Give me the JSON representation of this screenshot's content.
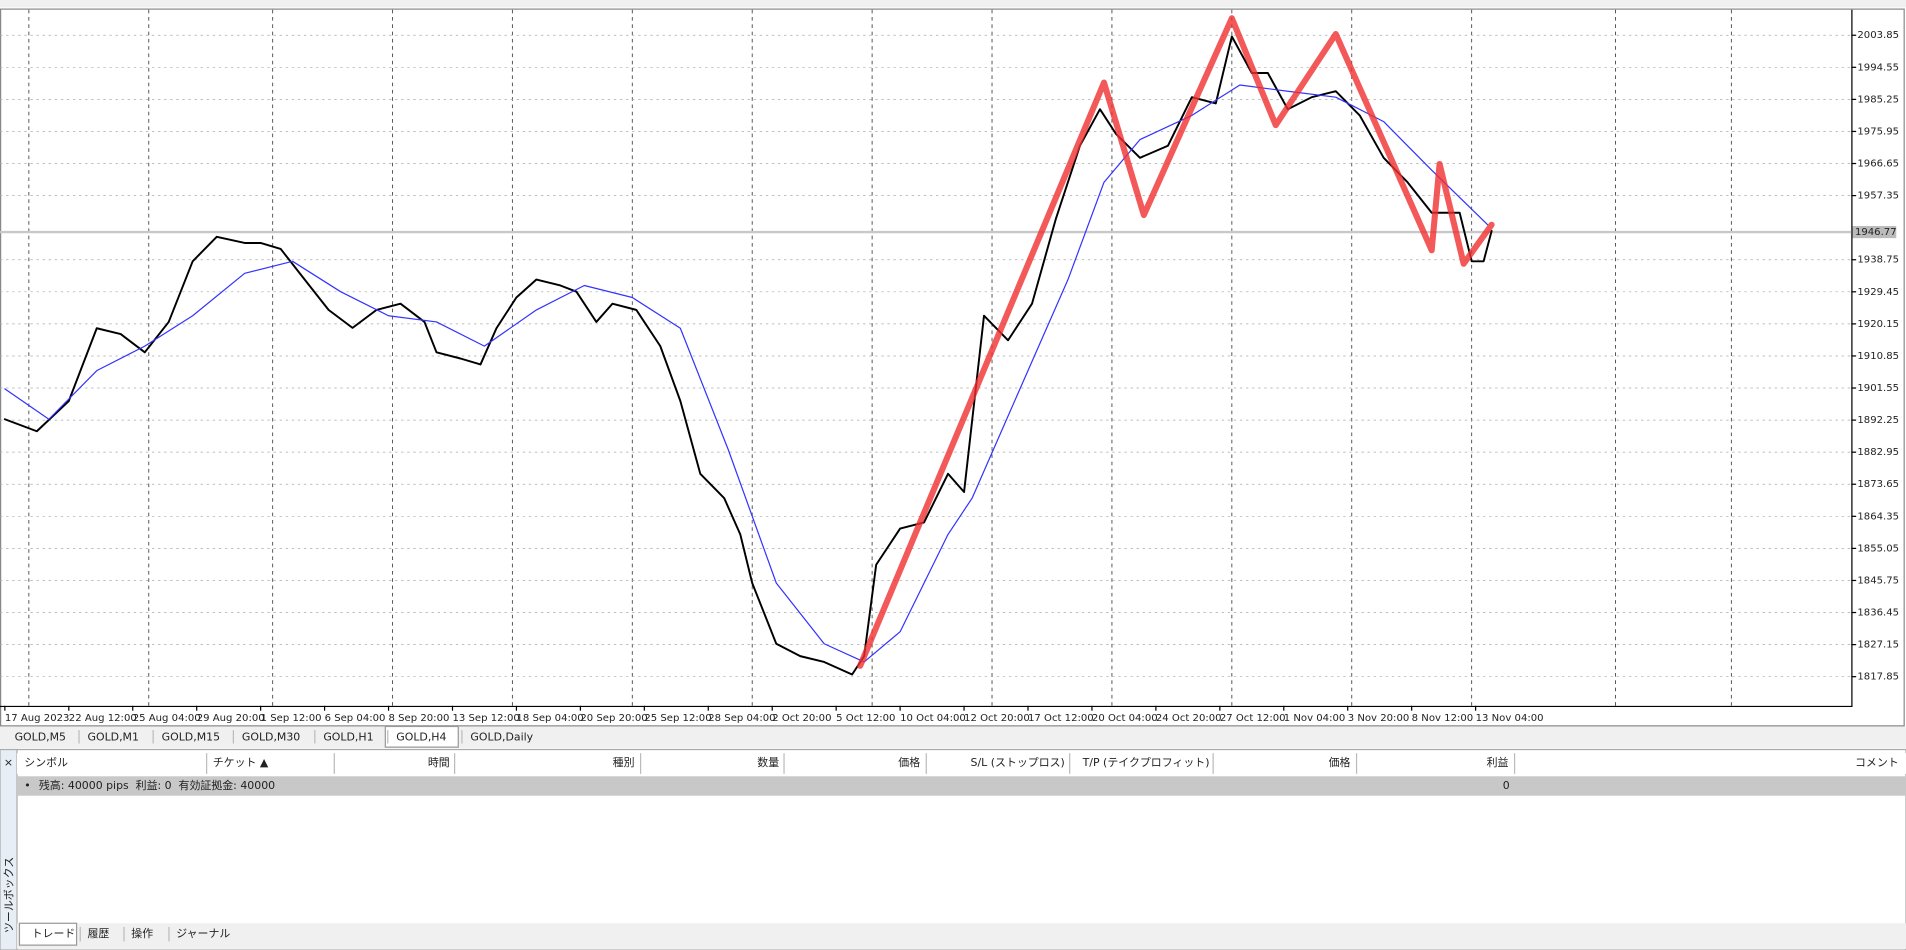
{
  "chart_data": {
    "type": "line",
    "xlim": [
      0,
      462
    ],
    "ylim": [
      1809.4,
      2011.25
    ],
    "yticks": [
      2003.85,
      1994.55,
      1985.25,
      1975.95,
      1966.65,
      1957.35,
      1938.75,
      1929.45,
      1920.15,
      1910.85,
      1901.55,
      1892.25,
      1882.95,
      1873.65,
      1864.35,
      1855.05,
      1845.75,
      1836.45,
      1827.15,
      1817.85
    ],
    "xticks": [
      {
        "value": 0,
        "label": "17 Aug 2023"
      },
      {
        "value": 16,
        "label": "22 Aug 12:00"
      },
      {
        "value": 32,
        "label": "25 Aug 04:00"
      },
      {
        "value": 48,
        "label": "29 Aug 20:00"
      },
      {
        "value": 64,
        "label": "1 Sep 12:00"
      },
      {
        "value": 80,
        "label": "6 Sep 04:00"
      },
      {
        "value": 96,
        "label": "8 Sep 20:00"
      },
      {
        "value": 112,
        "label": "13 Sep 12:00"
      },
      {
        "value": 128,
        "label": "18 Sep 04:00"
      },
      {
        "value": 144,
        "label": "20 Sep 20:00"
      },
      {
        "value": 160,
        "label": "25 Sep 12:00"
      },
      {
        "value": 176,
        "label": "28 Sep 04:00"
      },
      {
        "value": 192,
        "label": "2 Oct 20:00"
      },
      {
        "value": 208,
        "label": "5 Oct 12:00"
      },
      {
        "value": 224,
        "label": "10 Oct 04:00"
      },
      {
        "value": 240,
        "label": "12 Oct 20:00"
      },
      {
        "value": 256,
        "label": "17 Oct 12:00"
      },
      {
        "value": 272,
        "label": "20 Oct 04:00"
      },
      {
        "value": 288,
        "label": "24 Oct 20:00"
      },
      {
        "value": 304,
        "label": "27 Oct 12:00"
      },
      {
        "value": 320,
        "label": "1 Nov 04:00"
      },
      {
        "value": 336,
        "label": "3 Nov 20:00"
      },
      {
        "value": 352,
        "label": "8 Nov 12:00"
      },
      {
        "value": 368,
        "label": "13 Nov 04:00"
      }
    ],
    "xgrid": [
      6,
      36,
      67,
      97,
      127,
      157,
      187,
      217,
      247,
      277,
      307,
      337,
      367,
      403,
      432
    ],
    "grid": true,
    "price_line": 1946.77,
    "series": [
      {
        "color": "#000000",
        "width": 1.6,
        "x": [
          0,
          8,
          16,
          23,
          29,
          35,
          41,
          47,
          53,
          60,
          64,
          69,
          75,
          81,
          87,
          93,
          99,
          105,
          108,
          114,
          119,
          123,
          128,
          133,
          139,
          143,
          148,
          152,
          158,
          164,
          169,
          174,
          180,
          184,
          187,
          193,
          199,
          205,
          212,
          215,
          218,
          224,
          230,
          236,
          240,
          245,
          251,
          257,
          263,
          269,
          274,
          278,
          284,
          291,
          297,
          303,
          307,
          312,
          316,
          321,
          327,
          333,
          339,
          345,
          351,
          357,
          364,
          367,
          370,
          372
        ],
        "values": [
          1892.5,
          1889.0,
          1897.8,
          1918.9,
          1917.2,
          1911.9,
          1920.7,
          1938.3,
          1945.4,
          1943.6,
          1943.6,
          1941.9,
          1933.0,
          1924.2,
          1919.0,
          1924.2,
          1926.0,
          1920.7,
          1911.9,
          1910.1,
          1908.4,
          1918.9,
          1927.8,
          1933.0,
          1931.3,
          1929.5,
          1920.7,
          1926.0,
          1924.2,
          1913.7,
          1897.8,
          1876.7,
          1869.6,
          1859.1,
          1845.0,
          1827.4,
          1823.8,
          1822.1,
          1818.5,
          1823.8,
          1850.3,
          1860.8,
          1862.6,
          1876.7,
          1871.4,
          1922.5,
          1915.4,
          1926.0,
          1950.7,
          1971.8,
          1982.4,
          1975.3,
          1968.3,
          1971.8,
          1985.9,
          1984.1,
          2003.5,
          1992.9,
          1992.9,
          1982.4,
          1985.9,
          1987.6,
          1980.6,
          1968.3,
          1961.2,
          1952.4,
          1952.4,
          1938.3,
          1938.3,
          1947.1
        ]
      },
      {
        "color": "#3333ff",
        "width": 1,
        "x": [
          0,
          11,
          23,
          35,
          47,
          60,
          72,
          84,
          96,
          108,
          120,
          133,
          145,
          157,
          169,
          181,
          193,
          205,
          215,
          224,
          236,
          242,
          254,
          266,
          275,
          284,
          297,
          309,
          321,
          333,
          345,
          357,
          371
        ],
        "values": [
          1901.3,
          1892.5,
          1906.6,
          1913.7,
          1922.5,
          1934.8,
          1938.3,
          1929.5,
          1922.5,
          1920.7,
          1913.7,
          1924.2,
          1931.3,
          1927.8,
          1918.9,
          1883.7,
          1845.0,
          1827.4,
          1822.1,
          1830.9,
          1859.1,
          1869.6,
          1901.3,
          1933.0,
          1961.2,
          1973.6,
          1980.6,
          1989.4,
          1987.6,
          1985.9,
          1978.8,
          1964.7,
          1948.9
        ]
      },
      {
        "color": "#f03030",
        "width": 5,
        "x": [
          214,
          275,
          285,
          307,
          318,
          333,
          357,
          359,
          365,
          372
        ],
        "values": [
          1821.0,
          1990.1,
          1951.7,
          2008.8,
          1977.8,
          2004.2,
          1941.5,
          1966.5,
          1937.6,
          1948.9
        ]
      }
    ]
  },
  "chart_tabs": [
    "GOLD,M5",
    "GOLD,M1",
    "GOLD,M15",
    "GOLD,M30",
    "GOLD,H1",
    "GOLD,H4",
    "GOLD,Daily"
  ],
  "terminal": {
    "close": "×",
    "side_title": "ツールボックス",
    "columns": [
      "シンボル",
      "チケット ▲",
      "時間",
      "種別",
      "数量",
      "価格",
      "S/L (ストップロス)",
      "T/P (テイクプロフィット)",
      "価格",
      "利益",
      "コメント"
    ],
    "summary": "残高: 40000 pips  利益: 0  有効証拠金: 40000",
    "profit": "0",
    "tabs": [
      "トレード",
      "履歴",
      "操作",
      "ジャーナル"
    ]
  }
}
